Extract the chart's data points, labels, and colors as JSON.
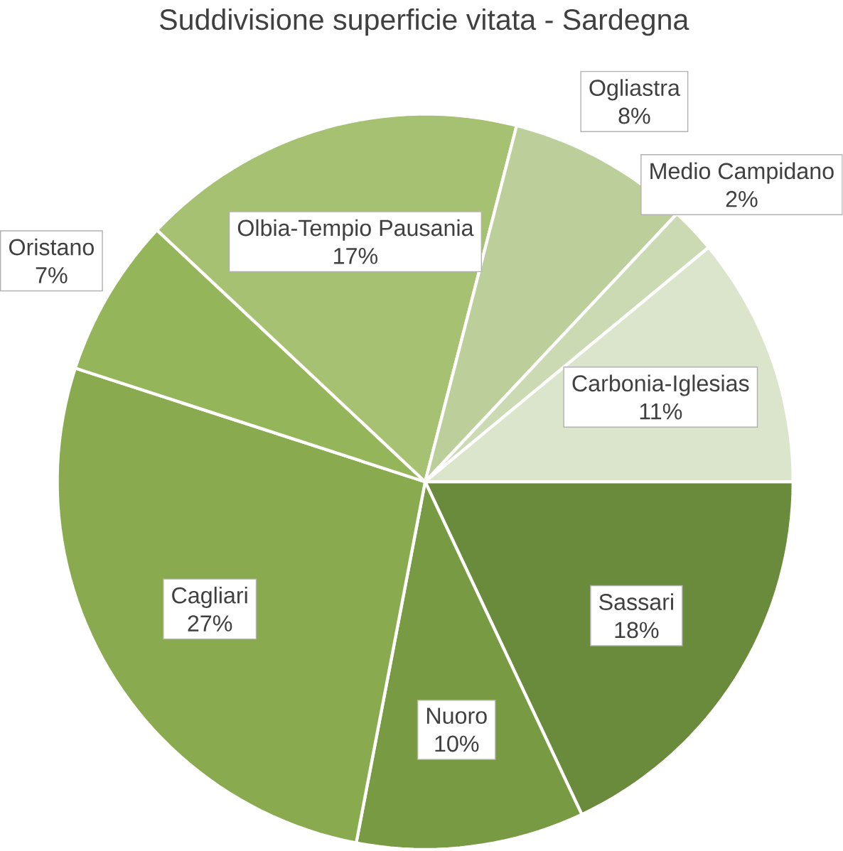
{
  "chart_data": {
    "type": "pie",
    "title": "Suddivisione superficie vitata - Sardegna",
    "categories": [
      "Sassari",
      "Nuoro",
      "Cagliari",
      "Oristano",
      "Olbia-Tempio Pausania",
      "Ogliastra",
      "Medio Campidano",
      "Carbonia-Iglesias"
    ],
    "values": [
      18,
      10,
      27,
      7,
      17,
      8,
      2,
      11
    ],
    "value_labels": [
      "18%",
      "10%",
      "27%",
      "7%",
      "17%",
      "8%",
      "2%",
      "11%"
    ],
    "colors": [
      "#6a8a3c",
      "#789a42",
      "#8aaa50",
      "#94b55a",
      "#a5c171",
      "#bccf9a",
      "#cbdab3",
      "#dbe5cb"
    ]
  }
}
